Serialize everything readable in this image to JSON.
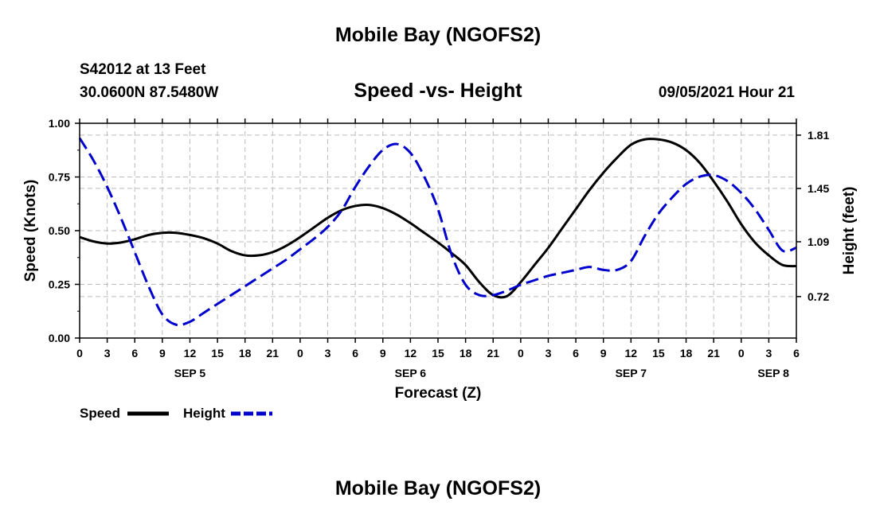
{
  "header": {
    "title": "Mobile Bay (NGOFS2)",
    "station": "S42012 at 13 Feet",
    "coords": "30.0600N  87.5480W",
    "subtitle": "Speed -vs- Height",
    "datetime": "09/05/2021 Hour 21"
  },
  "footer": {
    "title": "Mobile Bay (NGOFS2)"
  },
  "colors": {
    "speed": "#000000",
    "height": "#0000cc",
    "grid": "#bbbbbb"
  },
  "chart_data": {
    "type": "line",
    "title": "Speed -vs- Height",
    "xlabel": "Forecast (Z)",
    "ylabel": "Speed (Knots)",
    "y2label": "Height (feet)",
    "xlim": [
      0,
      78
    ],
    "ylim": [
      0,
      1
    ],
    "y2lim": [
      0.44,
      1.89
    ],
    "grid": true,
    "x_ticks": [
      0,
      3,
      6,
      9,
      12,
      15,
      18,
      21,
      24,
      27,
      30,
      33,
      36,
      39,
      42,
      45,
      48,
      51,
      54,
      57,
      60,
      63,
      66,
      69,
      72,
      75,
      78
    ],
    "x_tick_labels": [
      "0",
      "3",
      "6",
      "9",
      "12",
      "15",
      "18",
      "21",
      "0",
      "3",
      "6",
      "9",
      "12",
      "15",
      "18",
      "21",
      "0",
      "3",
      "6",
      "9",
      "12",
      "15",
      "18",
      "21",
      "0",
      "3",
      "6"
    ],
    "day_labels": [
      {
        "label": "SEP 5",
        "x": 12
      },
      {
        "label": "SEP 6",
        "x": 36
      },
      {
        "label": "SEP 7",
        "x": 60
      },
      {
        "label": "SEP 8",
        "x": 75.5
      }
    ],
    "y_ticks": [
      0,
      0.25,
      0.5,
      0.75,
      1.0
    ],
    "y_tick_labels": [
      "0.00",
      "0.25",
      "0.50",
      "0.75",
      "1.00"
    ],
    "y2_ticks": [
      0.72,
      1.09,
      1.45,
      1.81
    ],
    "y2_tick_labels": [
      "0.72",
      "1.09",
      "1.45",
      "1.81"
    ],
    "series": [
      {
        "name": "Speed",
        "axis": "left",
        "style": "solid",
        "x": [
          0,
          1.5,
          3,
          4.5,
          6,
          7.5,
          9,
          10.5,
          12,
          13.5,
          15,
          16.5,
          18,
          19.5,
          21,
          22.5,
          24,
          25.5,
          27,
          28.5,
          30,
          31.5,
          33,
          34.5,
          36,
          37.5,
          39,
          40.5,
          42,
          43.5,
          45,
          46.5,
          48,
          49.5,
          51,
          52.5,
          54,
          55.5,
          57,
          58.5,
          60,
          61.5,
          63,
          64.5,
          66,
          67.5,
          69,
          70.5,
          72,
          73.5,
          75,
          76.5,
          78
        ],
        "values": [
          0.47,
          0.45,
          0.44,
          0.445,
          0.46,
          0.48,
          0.49,
          0.49,
          0.48,
          0.465,
          0.44,
          0.405,
          0.385,
          0.385,
          0.4,
          0.43,
          0.47,
          0.515,
          0.56,
          0.595,
          0.615,
          0.62,
          0.605,
          0.575,
          0.535,
          0.49,
          0.445,
          0.395,
          0.34,
          0.26,
          0.2,
          0.195,
          0.26,
          0.34,
          0.42,
          0.51,
          0.6,
          0.69,
          0.77,
          0.84,
          0.9,
          0.925,
          0.925,
          0.91,
          0.875,
          0.815,
          0.73,
          0.635,
          0.53,
          0.445,
          0.385,
          0.34,
          0.335
        ]
      },
      {
        "name": "Height",
        "axis": "right",
        "style": "dashed",
        "x": [
          0,
          1.5,
          3,
          4.5,
          6,
          7.5,
          9,
          10.5,
          12,
          13.5,
          15,
          16.5,
          18,
          19.5,
          21,
          22.5,
          24,
          25.5,
          27,
          28.5,
          30,
          31.5,
          33,
          34.5,
          36,
          37.5,
          39,
          40.5,
          42,
          43.5,
          45,
          46.5,
          48,
          49.5,
          51,
          52.5,
          54,
          55.5,
          57,
          58.5,
          60,
          61.5,
          63,
          64.5,
          66,
          67.5,
          69,
          70.5,
          72,
          73.5,
          75,
          76.5,
          78
        ],
        "values": [
          1.79,
          1.64,
          1.46,
          1.25,
          1.02,
          0.79,
          0.6,
          0.53,
          0.55,
          0.61,
          0.67,
          0.73,
          0.79,
          0.85,
          0.91,
          0.97,
          1.04,
          1.11,
          1.19,
          1.3,
          1.46,
          1.6,
          1.71,
          1.75,
          1.69,
          1.53,
          1.31,
          1.0,
          0.8,
          0.73,
          0.73,
          0.76,
          0.8,
          0.83,
          0.86,
          0.88,
          0.9,
          0.92,
          0.9,
          0.9,
          0.96,
          1.13,
          1.28,
          1.39,
          1.48,
          1.53,
          1.54,
          1.5,
          1.42,
          1.31,
          1.17,
          1.03,
          1.05
        ]
      }
    ],
    "legend": [
      {
        "label": "Speed",
        "style": "solid"
      },
      {
        "label": "Height",
        "style": "dashed"
      }
    ]
  }
}
